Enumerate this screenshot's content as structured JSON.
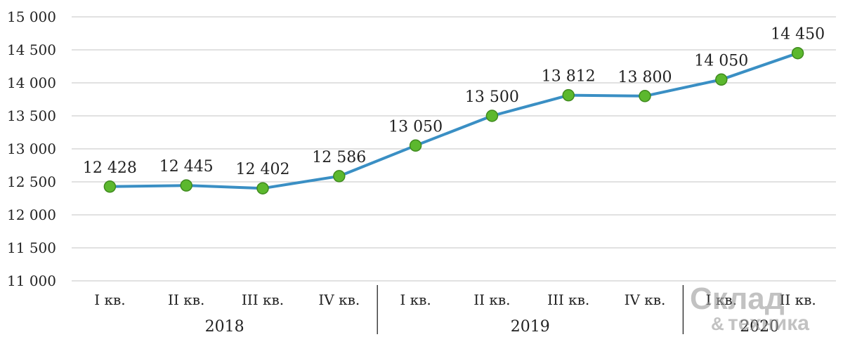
{
  "chart_data": {
    "type": "line",
    "title": "",
    "xlabel": "",
    "ylabel": "",
    "ylim": [
      11000,
      15000
    ],
    "yticks": [
      15000,
      14500,
      14000,
      13500,
      13000,
      12500,
      12000,
      11500,
      11000
    ],
    "ytick_labels": [
      "15 000",
      "14 500",
      "14 000",
      "13 500",
      "13 000",
      "12 500",
      "12 000",
      "11 500",
      "11 000"
    ],
    "categories": [
      "I кв.",
      "II кв.",
      "III кв.",
      "IV кв.",
      "I кв.",
      "II кв.",
      "III кв.",
      "IV кв.",
      "I кв.",
      "II кв."
    ],
    "groups": [
      {
        "label": "2018",
        "count": 4
      },
      {
        "label": "2019",
        "count": 4
      },
      {
        "label": "2020",
        "count": 2
      }
    ],
    "values": [
      12428,
      12445,
      12402,
      12586,
      13050,
      13500,
      13812,
      13800,
      14050,
      14450
    ],
    "value_labels": [
      "12 428",
      "12 445",
      "12 402",
      "12 586",
      "13 050",
      "13 500",
      "13 812",
      "13 800",
      "14 050",
      "14 450"
    ],
    "grid": true,
    "legend": "none",
    "colors": {
      "line": "#3a8fc4",
      "marker": "#5cb82e",
      "marker_edge": "#3f8a1e",
      "grid": "#cfcfcf"
    }
  },
  "watermark": {
    "line1": "Склад",
    "line2": "техника",
    "amp": "&"
  }
}
